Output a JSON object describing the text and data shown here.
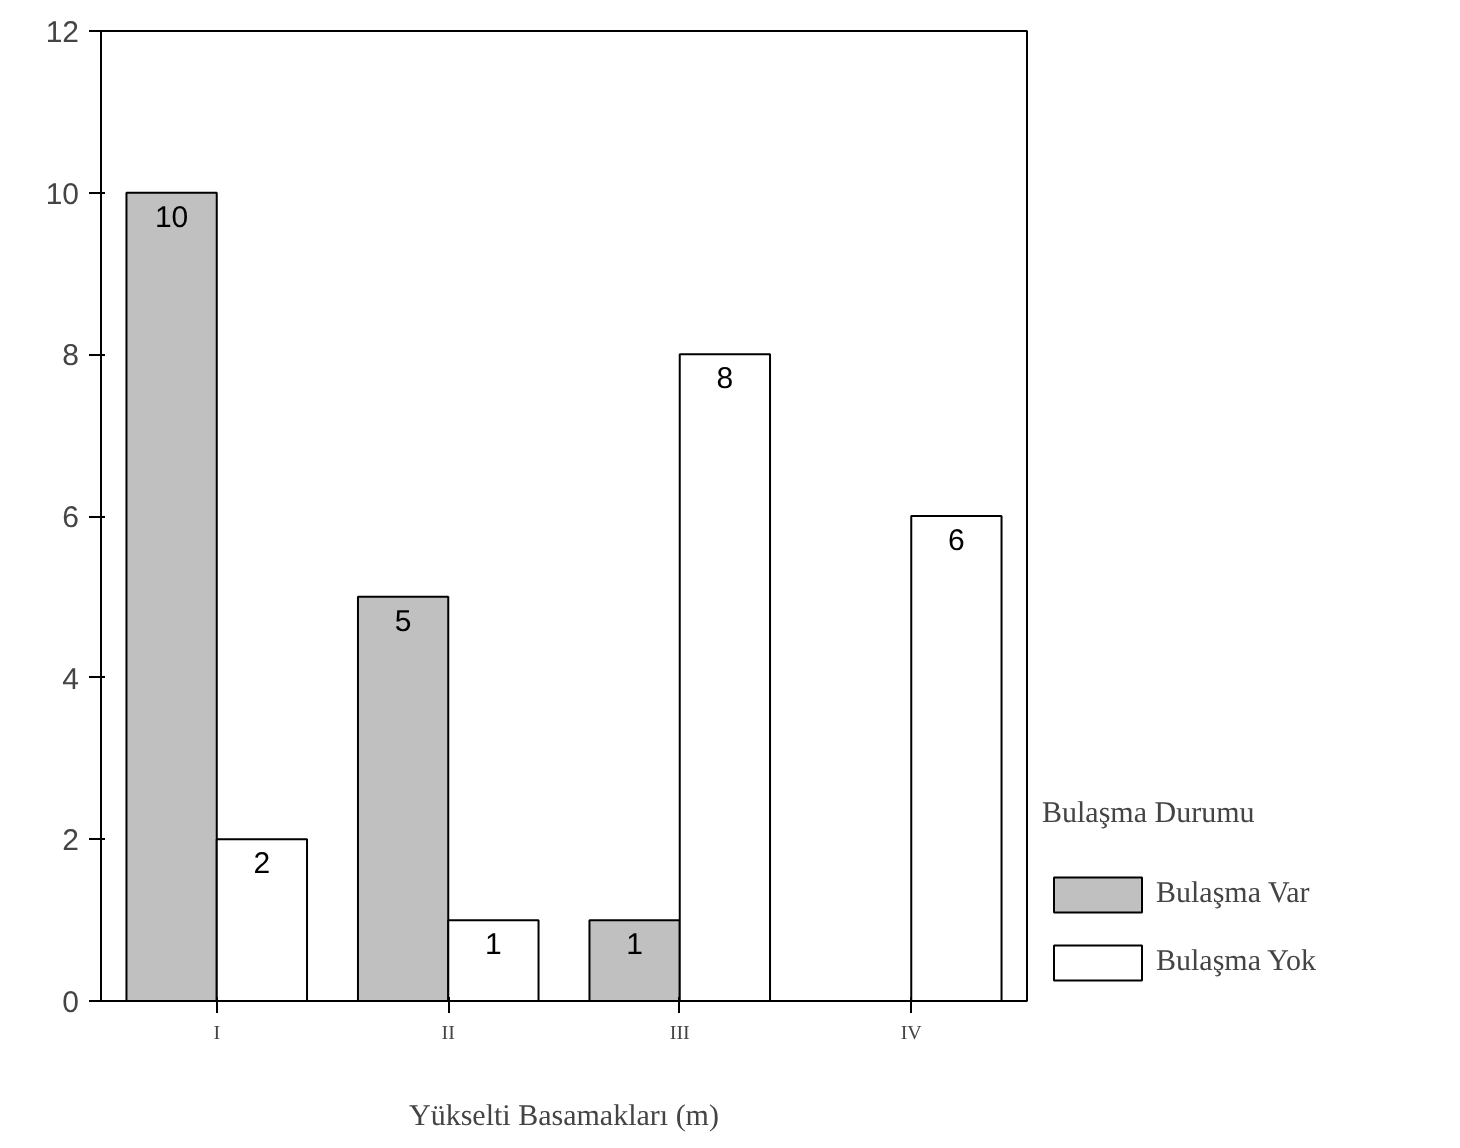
{
  "chart_data": {
    "type": "bar",
    "xlabel": "Yükselti Basamakları (m)",
    "legend_title": "Bulaşma Durumu",
    "categories": [
      "I",
      "II",
      "III",
      "IV"
    ],
    "series": [
      {
        "name": "Bulaşma Var",
        "color": "#c0c0c0",
        "values": [
          10,
          5,
          1,
          null
        ]
      },
      {
        "name": "Bulaşma Yok",
        "color": "#ffffff",
        "values": [
          2,
          1,
          8,
          6
        ]
      }
    ],
    "ylim": [
      0,
      12
    ],
    "yticks": [
      0,
      2,
      4,
      6,
      8,
      10,
      12
    ],
    "grid": false,
    "legend": "right",
    "data_labels": true
  }
}
